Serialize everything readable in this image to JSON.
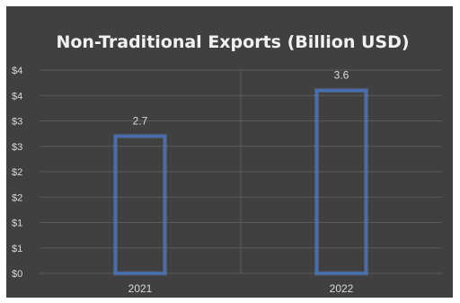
{
  "chart_data": {
    "type": "bar",
    "title": "Non-Traditional Exports (Billion USD)",
    "categories": [
      "2021",
      "2022"
    ],
    "values": [
      2.7,
      3.6
    ],
    "data_labels": [
      "2.7",
      "3.6"
    ],
    "ylim": [
      0,
      4
    ],
    "y_ticks": [
      {
        "value": 0,
        "label": "$0"
      },
      {
        "value": 0.5,
        "label": "$1"
      },
      {
        "value": 1,
        "label": "$1"
      },
      {
        "value": 1.5,
        "label": "$2"
      },
      {
        "value": 2,
        "label": "$2"
      },
      {
        "value": 2.5,
        "label": "$3"
      },
      {
        "value": 3,
        "label": "$3"
      },
      {
        "value": 3.5,
        "label": "$4"
      },
      {
        "value": 4,
        "label": "$4"
      }
    ],
    "xlabel": "",
    "ylabel": "",
    "grid": true,
    "legend": "none",
    "colors": {
      "background": "#404040",
      "bar_outline": "#4472c4",
      "grid": "#5a5a5a",
      "text": "#d9d9d9",
      "title": "#f2f2f2"
    }
  }
}
